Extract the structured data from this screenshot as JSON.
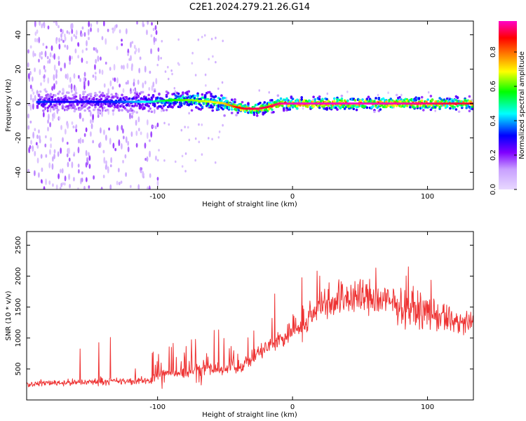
{
  "title": "C2E1.2024.279.21.26.G14",
  "chart_data": [
    {
      "type": "heatmap",
      "xlabel": "Height of straight line (km)",
      "ylabel": "Frequency (Hz)",
      "xlim": [
        -197,
        134
      ],
      "ylim": [
        -50,
        48
      ],
      "xticks": [
        -100,
        0,
        100
      ],
      "yticks": [
        -40,
        -20,
        0,
        20,
        40
      ],
      "colorbar": {
        "label": "Normalized spectral amplitude",
        "range": [
          0,
          0.98
        ],
        "ticks": [
          0.0,
          0.2,
          0.4,
          0.6,
          0.8
        ],
        "colormap": [
          "#e8d8ff",
          "#c8a0ff",
          "#7f00ff",
          "#0000ff",
          "#00ffff",
          "#00ff00",
          "#ffff00",
          "#ff8000",
          "#ff0000",
          "#ff00c8"
        ]
      },
      "ridge": {
        "x": [
          -185,
          -160,
          -130,
          -105,
          -90,
          -75,
          -60,
          -50,
          -42,
          -35,
          -25,
          -18,
          -10,
          0,
          20,
          40,
          60,
          80,
          95,
          110,
          134
        ],
        "frequency": [
          1,
          1,
          1,
          1,
          2,
          2,
          1,
          0,
          -2,
          -3,
          -3,
          -2,
          0,
          0,
          0,
          0,
          0,
          0,
          0,
          0,
          0
        ],
        "peak_amplitude": [
          0.35,
          0.3,
          0.35,
          0.45,
          0.55,
          0.6,
          0.65,
          0.7,
          0.85,
          0.9,
          0.92,
          0.9,
          0.95,
          0.98,
          0.98,
          0.98,
          0.98,
          0.97,
          0.95,
          0.92,
          0.9
        ]
      }
    },
    {
      "type": "line",
      "xlabel": "Height of straight line (km)",
      "ylabel": "SNR (10 * v/v)",
      "xlim": [
        -197,
        134
      ],
      "ylim": [
        0,
        2720
      ],
      "xticks": [
        -100,
        0,
        100
      ],
      "yticks": [
        500,
        1000,
        1500,
        2000,
        2500
      ],
      "series": [
        {
          "color": "#ee3333",
          "x": [
            -197,
            -180,
            -160,
            -140,
            -120,
            -105,
            -95,
            -85,
            -70,
            -55,
            -45,
            -35,
            -25,
            -15,
            -5,
            0,
            5,
            8,
            12,
            20,
            30,
            45,
            60,
            80,
            100,
            115,
            134
          ],
          "y": [
            250,
            280,
            280,
            300,
            300,
            320,
            430,
            440,
            490,
            490,
            500,
            590,
            760,
            900,
            1030,
            1170,
            1200,
            1100,
            1300,
            1540,
            1620,
            1680,
            1640,
            1520,
            1420,
            1300,
            1200
          ]
        }
      ]
    }
  ]
}
